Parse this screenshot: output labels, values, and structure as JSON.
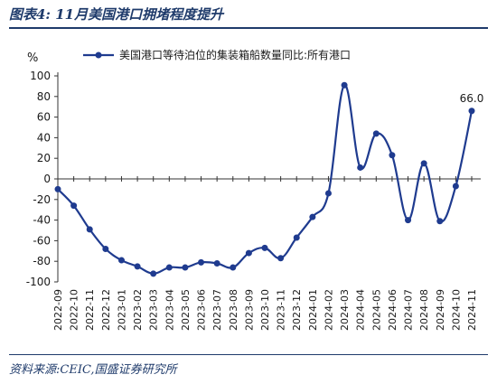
{
  "header": {
    "title": "图表4:  11月美国港口拥堵程度提升"
  },
  "footer": {
    "source": "资料来源:CEIC,国盛证券研究所"
  },
  "chart_data": {
    "type": "line",
    "unit_label": "%",
    "legend": {
      "label": "美国港口等待泊位的集装箱船数量同比:所有港口",
      "placement": "top"
    },
    "ylim": [
      -100,
      100
    ],
    "yticks": [
      -100,
      -80,
      -60,
      -40,
      -20,
      0,
      20,
      40,
      60,
      80,
      100
    ],
    "xticks": [
      "2022-09",
      "2022-10",
      "2022-11",
      "2022-12",
      "2023-01",
      "2023-02",
      "2023-03",
      "2023-04",
      "2023-05",
      "2023-06",
      "2023-07",
      "2023-08",
      "2023-09",
      "2023-10",
      "2023-11",
      "2023-12",
      "2024-01",
      "2024-02",
      "2024-03",
      "2024-04",
      "2024-05",
      "2024-06",
      "2024-07",
      "2024-08",
      "2024-09",
      "2024-10",
      "2024-11"
    ],
    "series": [
      {
        "name": "美国港口等待泊位的集装箱船数量同比:所有港口",
        "color": "#1f3b8f",
        "points": [
          {
            "x": "2022-09",
            "y": -10
          },
          {
            "x": "2022-10",
            "y": -26
          },
          {
            "x": "2022-11",
            "y": -49
          },
          {
            "x": "2022-12",
            "y": -68
          },
          {
            "x": "2023-01",
            "y": -79
          },
          {
            "x": "2023-02",
            "y": -85
          },
          {
            "x": "2023-03",
            "y": -92
          },
          {
            "x": "2023-04",
            "y": -86
          },
          {
            "x": "2023-05",
            "y": -86
          },
          {
            "x": "2023-06",
            "y": -81
          },
          {
            "x": "2023-07",
            "y": -82
          },
          {
            "x": "2023-08",
            "y": -86
          },
          {
            "x": "2023-09",
            "y": -72
          },
          {
            "x": "2023-10",
            "y": -67
          },
          {
            "x": "2023-11",
            "y": -77
          },
          {
            "x": "2023-12",
            "y": -57
          },
          {
            "x": "2024-01",
            "y": -37
          },
          {
            "x": "2024-02",
            "y": -14
          },
          {
            "x": "2024-03",
            "y": 91
          },
          {
            "x": "2024-04",
            "y": 11
          },
          {
            "x": "2024-05",
            "y": 44
          },
          {
            "x": "2024-06",
            "y": 23
          },
          {
            "x": "2024-07",
            "y": -40
          },
          {
            "x": "2024-08",
            "y": 15
          },
          {
            "x": "2024-09",
            "y": -41
          },
          {
            "x": "2024-10",
            "y": -7
          },
          {
            "x": "2024-11",
            "y": 66.0
          }
        ]
      }
    ],
    "annotations": [
      {
        "x": "2024-11",
        "y": 66.0,
        "text": "66.0"
      }
    ],
    "grid": false
  }
}
